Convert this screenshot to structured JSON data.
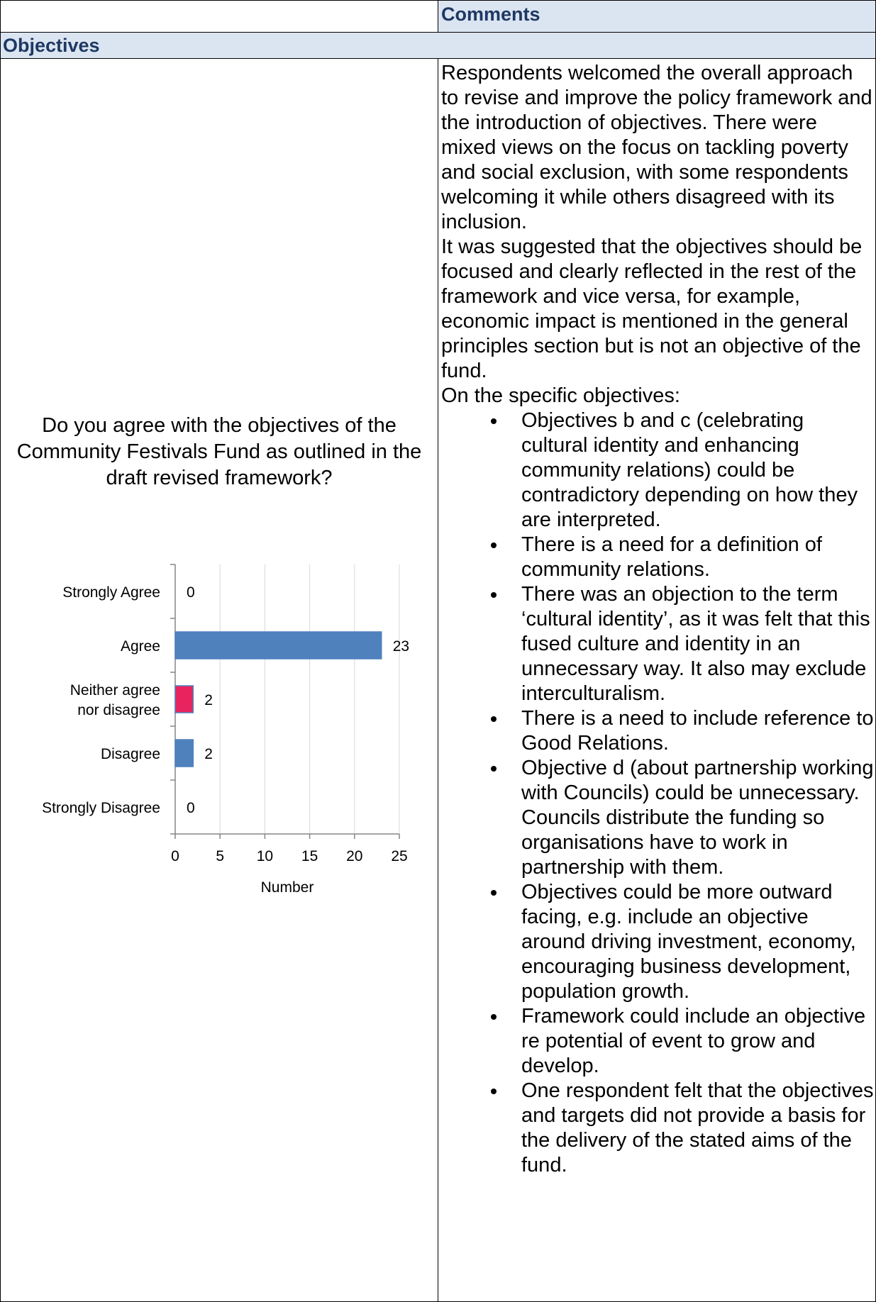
{
  "header": {
    "comments_label": "Comments"
  },
  "section": {
    "title": "Objectives"
  },
  "question": "Do you agree with the objectives of the Community Festivals Fund as outlined in the draft revised framework?",
  "comments": {
    "paragraphs": [
      "Respondents welcomed the overall approach to revise and improve the policy framework and the introduction of objectives.  There were mixed views on the focus on tackling poverty and social exclusion, with some respondents welcoming it while others disagreed with its inclusion.",
      "It was suggested that the objectives should be focused and clearly reflected in the rest of the framework and vice versa, for example, economic impact is mentioned in the general principles section but is not an objective of the fund.",
      "On the specific objectives:"
    ],
    "bullets": [
      "Objectives b and c (celebrating cultural identity and enhancing community relations) could be contradictory depending on how they are interpreted.",
      "There is a need for a definition of community relations.",
      "There was an objection to the term ‘cultural identity’, as it was felt that this fused culture and identity in an unnecessary way. It also may exclude interculturalism.",
      "There is a need to include reference to Good Relations.",
      "Objective d (about partnership working with Councils) could be unnecessary. Councils distribute the funding so organisations have to work in partnership with them.",
      "Objectives could be more outward facing, e.g. include an objective around driving investment, economy, encouraging business development, population growth.",
      "Framework could include an objective re potential of event to grow and develop.",
      "One respondent felt that the objectives and targets did not provide a basis for the delivery of the stated aims of the fund."
    ]
  },
  "chart_data": {
    "type": "bar",
    "orientation": "horizontal",
    "categories": [
      "Strongly Agree",
      "Agree",
      "Neither agree nor disagree",
      "Disagree",
      "Strongly Disagree"
    ],
    "category_lines": [
      [
        "Strongly Agree"
      ],
      [
        "Agree"
      ],
      [
        "Neither agree",
        "nor disagree"
      ],
      [
        "Disagree"
      ],
      [
        "Strongly Disagree"
      ]
    ],
    "values": [
      0,
      23,
      2,
      2,
      0
    ],
    "bar_colors": [
      "#4f81bd",
      "#4f81bd",
      "#e8245f",
      "#4f81bd",
      "#4f81bd"
    ],
    "xlabel": "Number",
    "xlim": [
      0,
      25
    ],
    "xticks": [
      "0",
      "5",
      "10",
      "15",
      "20",
      "25"
    ],
    "grid": "vertical",
    "legend": "none"
  }
}
